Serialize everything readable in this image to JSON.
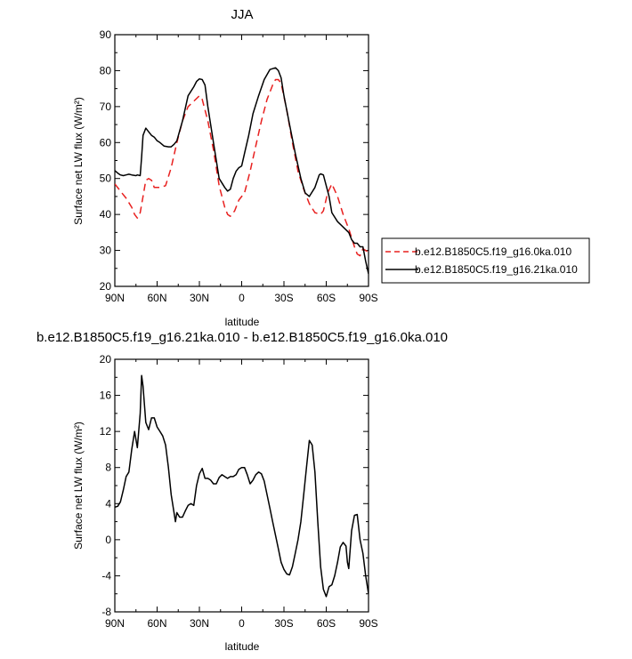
{
  "chart_data": [
    {
      "type": "line",
      "title": "JJA",
      "xlabel": "latitude",
      "ylabel": "Surface net LW flux (W/m²)",
      "xticks": [
        "90N",
        "60N",
        "30N",
        "0",
        "30S",
        "60S",
        "90S"
      ],
      "xlim": [
        90,
        -90
      ],
      "ylim": [
        20,
        90
      ],
      "yticks": [
        20,
        30,
        40,
        50,
        60,
        70,
        80,
        90
      ],
      "legend": {
        "placement": "right"
      },
      "series": [
        {
          "name": "b.e12.B1850C5.f19_g16.0ka.010",
          "color": "#e8201f",
          "dash": "dashed",
          "x": [
            90,
            86,
            82,
            78,
            76,
            74,
            72,
            70,
            68,
            66,
            64,
            62,
            58,
            54,
            50,
            46,
            42,
            38,
            34,
            30,
            28,
            24,
            20,
            16,
            12,
            10,
            8,
            5,
            2,
            -2,
            -6,
            -10,
            -14,
            -18,
            -22,
            -24,
            -26,
            -28,
            -32,
            -36,
            -40,
            -44,
            -48,
            -52,
            -56,
            -58,
            -61,
            -64,
            -68,
            -72,
            -76,
            -80,
            -82,
            -84,
            -86,
            -88,
            -90
          ],
          "y": [
            48.5,
            46.5,
            44.5,
            42,
            40,
            39,
            40.5,
            45,
            49.5,
            50,
            49.5,
            47.5,
            47.5,
            48,
            53,
            60,
            66,
            70,
            71.5,
            73,
            72,
            66,
            58,
            48,
            42,
            40,
            39.5,
            41,
            44,
            46,
            52,
            59,
            66,
            72,
            76,
            77.5,
            77.5,
            76.5,
            69,
            60,
            52,
            47,
            43,
            40.5,
            40,
            41,
            46,
            48.5,
            45,
            40,
            36,
            31,
            29,
            28.5,
            30.5,
            30,
            29.5
          ]
        },
        {
          "name": "b.e12.B1850C5.f19_g16.21ka.010",
          "color": "#000000",
          "dash": "solid",
          "x": [
            90,
            88,
            86,
            84,
            82,
            80,
            78,
            75,
            74,
            72,
            71,
            70,
            68,
            66,
            64,
            62,
            60,
            58,
            55,
            52,
            50,
            48,
            46,
            42,
            38,
            34,
            32,
            30,
            28,
            26,
            24,
            20,
            16,
            12,
            10,
            8,
            6,
            4,
            2,
            0,
            -2,
            -5,
            -8,
            -12,
            -16,
            -20,
            -24,
            -26,
            -28,
            -30,
            -34,
            -38,
            -42,
            -45,
            -48,
            -52,
            -55,
            -56,
            -58,
            -60,
            -62,
            -64,
            -68,
            -72,
            -76,
            -78,
            -80,
            -82,
            -84,
            -86,
            -88,
            -90
          ],
          "y": [
            52.2,
            51.5,
            51,
            50.8,
            51,
            51.2,
            51,
            50.8,
            51,
            50.8,
            56,
            62,
            64,
            63,
            62,
            61.5,
            60.5,
            60,
            59,
            58.8,
            58.8,
            59.5,
            60.5,
            66,
            73,
            75.5,
            77,
            77.7,
            77.5,
            76,
            70,
            60,
            50,
            47.5,
            46.5,
            47,
            50,
            52,
            53,
            53.5,
            57,
            62,
            68,
            73,
            77.5,
            80.3,
            80.8,
            80,
            78,
            73,
            65,
            57,
            50,
            46,
            45,
            47.5,
            51,
            51.3,
            51,
            48,
            45,
            40.5,
            38,
            36.5,
            35,
            33,
            32,
            32,
            31,
            31,
            27,
            23.5
          ]
        }
      ]
    },
    {
      "type": "line",
      "title": "b.e12.B1850C5.f19_g16.21ka.010 - b.e12.B1850C5.f19_g16.0ka.010",
      "xlabel": "latitude",
      "ylabel": "Surface net LW flux (W/m²)",
      "xticks": [
        "90N",
        "60N",
        "30N",
        "0",
        "30S",
        "60S",
        "90S"
      ],
      "xlim": [
        90,
        -90
      ],
      "ylim": [
        -8,
        20
      ],
      "yticks": [
        -8,
        -4,
        0,
        4,
        8,
        12,
        16,
        20
      ],
      "series": [
        {
          "name": "",
          "color": "#000000",
          "dash": "solid",
          "x": [
            90,
            88,
            86,
            84,
            82,
            80,
            78,
            76,
            74,
            72,
            71,
            70,
            68,
            66,
            64,
            62,
            60,
            58,
            56,
            54,
            52,
            50,
            48,
            47,
            46,
            44,
            42,
            40,
            38,
            36,
            34,
            32,
            30,
            28,
            26,
            24,
            22,
            20,
            18,
            16,
            14,
            12,
            10,
            8,
            6,
            4,
            2,
            0,
            -2,
            -4,
            -6,
            -8,
            -10,
            -12,
            -14,
            -16,
            -18,
            -20,
            -22,
            -24,
            -26,
            -28,
            -30,
            -32,
            -34,
            -36,
            -38,
            -40,
            -42,
            -44,
            -46,
            -48,
            -50,
            -52,
            -54,
            -56,
            -58,
            -60,
            -62,
            -64,
            -66,
            -68,
            -70,
            -72,
            -74,
            -75,
            -76,
            -78,
            -80,
            -82,
            -84,
            -86,
            -88,
            -90
          ],
          "y": [
            3.6,
            3.7,
            4.2,
            5.5,
            7,
            7.5,
            10,
            12,
            10.2,
            14,
            18.2,
            17,
            13,
            12.2,
            13.5,
            13.5,
            12.5,
            12,
            11.5,
            10.5,
            8,
            5,
            3,
            2,
            3,
            2.5,
            2.5,
            3.2,
            3.8,
            4,
            3.8,
            6,
            7.3,
            7.9,
            6.8,
            6.8,
            6.6,
            6.2,
            6.2,
            6.9,
            7.2,
            7,
            6.8,
            7,
            7,
            7.2,
            7.8,
            8,
            8,
            7.2,
            6.2,
            6.6,
            7.2,
            7.5,
            7.3,
            6.5,
            5,
            3.5,
            2,
            0.5,
            -1,
            -2.5,
            -3.3,
            -3.8,
            -3.9,
            -3,
            -1.5,
            0,
            2,
            5,
            8,
            11,
            10.5,
            7.5,
            2,
            -3,
            -5.5,
            -6.3,
            -5.2,
            -5,
            -4,
            -2.5,
            -0.8,
            -0.3,
            -0.7,
            -2.5,
            -3.2,
            1,
            2.7,
            2.8,
            0,
            -1.5,
            -4,
            -6
          ]
        }
      ]
    }
  ]
}
